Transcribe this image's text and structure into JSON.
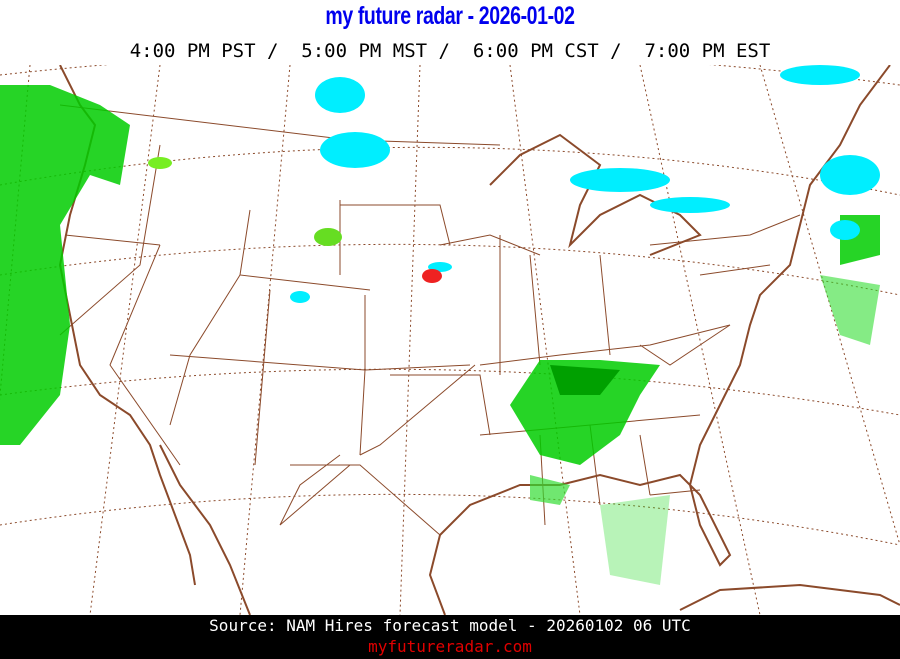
{
  "header": {
    "title": "my future radar - 2026-01-02",
    "times": "4:00 PM PST /  5:00 PM MST /  6:00 PM CST /  7:00 PM EST"
  },
  "map": {
    "region": "Continental United States",
    "border_color": "#8b4a2b",
    "precip_colors": {
      "rain_light": "#00dd00",
      "rain_heavy": "#00a000",
      "snow": "#00eeff",
      "mix": "#ee2222"
    }
  },
  "footer": {
    "source": "Source: NAM Hires forecast model - 20260102 06 UTC",
    "site": "myfutureradar.com"
  }
}
